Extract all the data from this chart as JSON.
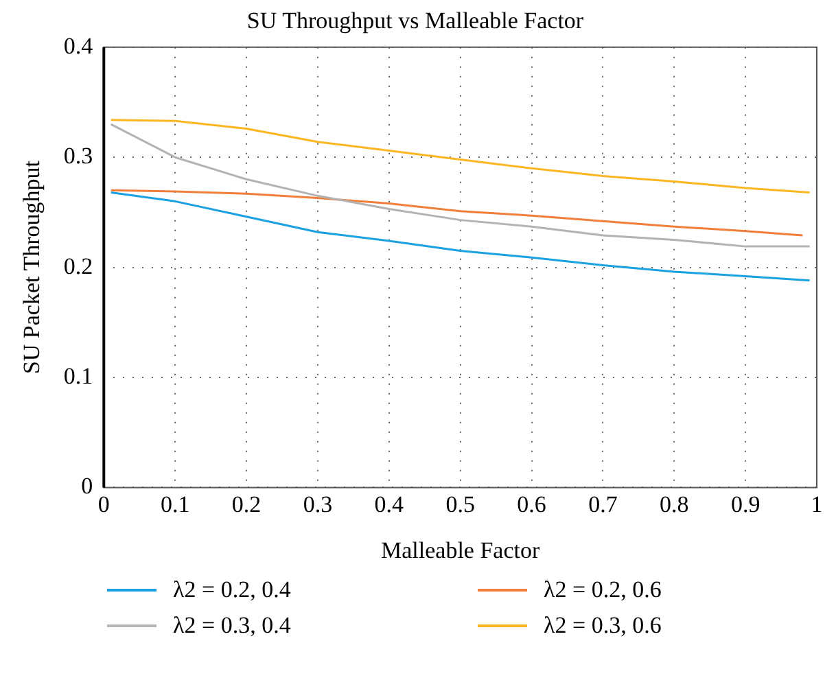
{
  "chart_data": {
    "type": "line",
    "title": "SU Throughput vs Malleable Factor",
    "xlabel": "Malleable Factor",
    "ylabel": "SU Packet Throughput",
    "x": [
      0.01,
      0.1,
      0.2,
      0.3,
      0.4,
      0.5,
      0.6,
      0.7,
      0.8,
      0.9,
      0.99
    ],
    "series": [
      {
        "name": "λ2 = 0.2, 0.4",
        "color": "#1ba1e2",
        "values": [
          0.268,
          0.26,
          0.246,
          0.232,
          0.224,
          0.215,
          0.209,
          0.202,
          0.196,
          0.192,
          0.188
        ]
      },
      {
        "name": "λ2 = 0.3, 0.4",
        "color": "#b3b3b3",
        "values": [
          0.33,
          0.3,
          0.28,
          0.265,
          0.253,
          0.243,
          0.237,
          0.229,
          0.225,
          0.219,
          0.219
        ]
      },
      {
        "name": "λ2 = 0.2, 0.6",
        "color": "#f07f3c",
        "x": [
          0.01,
          0.1,
          0.2,
          0.3,
          0.4,
          0.5,
          0.6,
          0.7,
          0.8,
          0.9,
          0.98
        ],
        "values": [
          0.27,
          0.269,
          0.267,
          0.263,
          0.258,
          0.251,
          0.247,
          0.242,
          0.237,
          0.233,
          0.229
        ]
      },
      {
        "name": "λ2 = 0.3, 0.6",
        "color": "#fbb621",
        "values": [
          0.334,
          0.333,
          0.326,
          0.314,
          0.306,
          0.298,
          0.29,
          0.283,
          0.278,
          0.272,
          0.268
        ]
      }
    ],
    "xlim": [
      0,
      1
    ],
    "xticks": [
      0,
      0.1,
      0.2,
      0.3,
      0.4,
      0.5,
      0.6,
      0.7,
      0.8,
      0.9,
      1
    ],
    "ylim": [
      0,
      0.4
    ],
    "yticks": [
      0,
      0.1,
      0.2,
      0.3,
      0.4
    ],
    "grid": true,
    "legend": "bottom",
    "marker": "none",
    "line_style": "solid"
  }
}
